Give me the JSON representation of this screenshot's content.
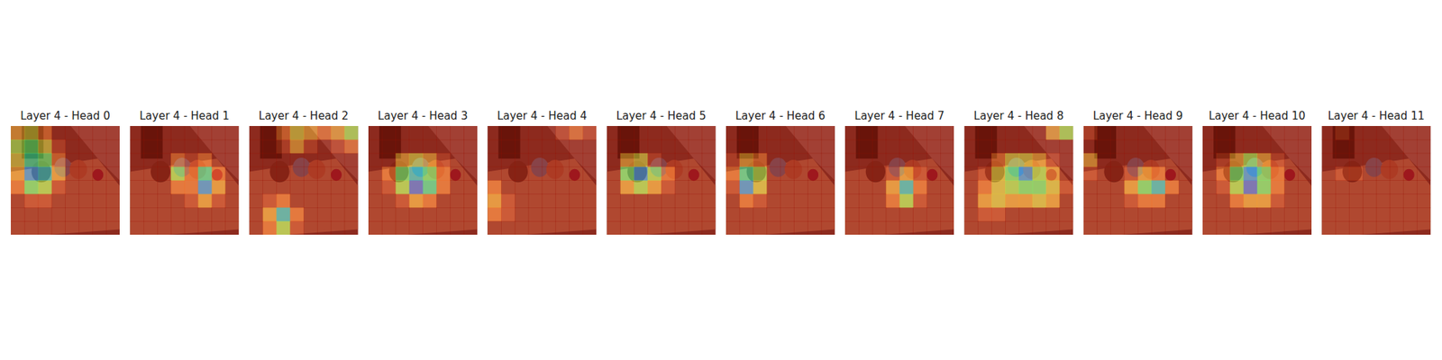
{
  "chart_data": [
    {
      "type": "heatmap",
      "title": "Layer 4 - Head 0",
      "zlim": [
        0,
        1
      ],
      "tick_labels": false,
      "cells": [
        [
          0.3,
          0.4,
          0.2,
          0,
          0,
          0,
          0,
          0
        ],
        [
          0.5,
          0.6,
          0.4,
          0.1,
          0,
          0,
          0,
          0
        ],
        [
          0.4,
          0.7,
          0.6,
          0.2,
          0,
          0,
          0,
          0
        ],
        [
          0.3,
          0.9,
          0.8,
          0.3,
          0,
          0,
          0,
          0
        ],
        [
          0.2,
          0.6,
          0.5,
          0.1,
          0,
          0,
          0,
          0
        ],
        [
          0,
          0.1,
          0.1,
          0,
          0,
          0,
          0,
          0
        ],
        [
          0,
          0,
          0,
          0,
          0,
          0,
          0,
          0
        ],
        [
          0,
          0,
          0,
          0,
          0,
          0,
          0,
          0
        ]
      ]
    },
    {
      "type": "heatmap",
      "title": "Layer 4 - Head 1",
      "zlim": [
        0,
        1
      ],
      "tick_labels": false,
      "cells": [
        [
          0,
          0,
          0,
          0,
          0,
          0,
          0,
          0
        ],
        [
          0,
          0,
          0,
          0,
          0,
          0,
          0,
          0
        ],
        [
          0,
          0,
          0,
          0.2,
          0.1,
          0.2,
          0,
          0
        ],
        [
          0,
          0,
          0,
          0.5,
          0.2,
          0.7,
          0.2,
          0
        ],
        [
          0,
          0,
          0,
          0.2,
          0.2,
          0.9,
          0.3,
          0
        ],
        [
          0,
          0,
          0,
          0,
          0.1,
          0.3,
          0.1,
          0
        ],
        [
          0,
          0,
          0,
          0,
          0,
          0,
          0,
          0
        ],
        [
          0,
          0,
          0,
          0,
          0,
          0,
          0,
          0
        ]
      ]
    },
    {
      "type": "heatmap",
      "title": "Layer 4 - Head 2",
      "zlim": [
        0,
        1
      ],
      "tick_labels": false,
      "cells": [
        [
          0,
          0,
          0.2,
          0.4,
          0.3,
          0.2,
          0.3,
          0.5
        ],
        [
          0,
          0,
          0.1,
          0.3,
          0.1,
          0,
          0.1,
          0.2
        ],
        [
          0,
          0,
          0,
          0,
          0,
          0,
          0,
          0
        ],
        [
          0,
          0,
          0,
          0,
          0,
          0,
          0,
          0
        ],
        [
          0,
          0,
          0,
          0,
          0,
          0,
          0,
          0
        ],
        [
          0,
          0.1,
          0.2,
          0,
          0,
          0,
          0,
          0
        ],
        [
          0,
          0.3,
          0.8,
          0.2,
          0,
          0,
          0,
          0
        ],
        [
          0,
          0.2,
          0.5,
          0.1,
          0,
          0,
          0,
          0
        ]
      ]
    },
    {
      "type": "heatmap",
      "title": "Layer 4 - Head 3",
      "zlim": [
        0,
        1
      ],
      "tick_labels": false,
      "cells": [
        [
          0,
          0,
          0,
          0,
          0,
          0,
          0,
          0
        ],
        [
          0,
          0,
          0,
          0,
          0,
          0,
          0,
          0
        ],
        [
          0,
          0,
          0.3,
          0.4,
          0.3,
          0.1,
          0,
          0
        ],
        [
          0,
          0.2,
          0.6,
          0.8,
          0.6,
          0.2,
          0,
          0
        ],
        [
          0,
          0.1,
          0.5,
          1,
          0.7,
          0.2,
          0,
          0
        ],
        [
          0,
          0,
          0.1,
          0.3,
          0.2,
          0,
          0,
          0
        ],
        [
          0,
          0,
          0,
          0,
          0,
          0,
          0,
          0
        ],
        [
          0,
          0,
          0,
          0,
          0,
          0,
          0,
          0
        ]
      ]
    },
    {
      "type": "heatmap",
      "title": "Layer 4 - Head 4",
      "zlim": [
        0,
        1
      ],
      "tick_labels": false,
      "cells": [
        [
          0,
          0,
          0,
          0,
          0,
          0.1,
          0.2,
          0.1
        ],
        [
          0,
          0,
          0,
          0,
          0,
          0,
          0,
          0
        ],
        [
          0,
          0,
          0,
          0,
          0,
          0,
          0,
          0
        ],
        [
          0,
          0,
          0,
          0,
          0,
          0,
          0,
          0
        ],
        [
          0.2,
          0,
          0,
          0,
          0,
          0,
          0,
          0
        ],
        [
          0.3,
          0.1,
          0,
          0,
          0,
          0,
          0,
          0
        ],
        [
          0.2,
          0.1,
          0,
          0,
          0,
          0,
          0,
          0
        ],
        [
          0,
          0,
          0,
          0,
          0,
          0,
          0,
          0
        ]
      ]
    },
    {
      "type": "heatmap",
      "title": "Layer 4 - Head 5",
      "zlim": [
        0,
        1
      ],
      "tick_labels": false,
      "cells": [
        [
          0,
          0,
          0,
          0,
          0,
          0,
          0,
          0
        ],
        [
          0,
          0,
          0,
          0,
          0,
          0,
          0,
          0
        ],
        [
          0,
          0.3,
          0.4,
          0.1,
          0,
          0,
          0,
          0
        ],
        [
          0,
          0.6,
          0.9,
          0.5,
          0.2,
          0,
          0,
          0
        ],
        [
          0,
          0.3,
          0.5,
          0.3,
          0.1,
          0,
          0,
          0
        ],
        [
          0,
          0,
          0,
          0,
          0,
          0,
          0,
          0
        ],
        [
          0,
          0,
          0,
          0,
          0,
          0,
          0,
          0
        ],
        [
          0,
          0,
          0,
          0,
          0,
          0,
          0,
          0
        ]
      ]
    },
    {
      "type": "heatmap",
      "title": "Layer 4 - Head 6",
      "zlim": [
        0,
        1
      ],
      "tick_labels": false,
      "cells": [
        [
          0,
          0,
          0,
          0,
          0,
          0,
          0,
          0
        ],
        [
          0,
          0,
          0,
          0,
          0,
          0,
          0,
          0
        ],
        [
          0.1,
          0.3,
          0.2,
          0,
          0,
          0,
          0,
          0
        ],
        [
          0.2,
          0.7,
          0.5,
          0,
          0,
          0,
          0,
          0
        ],
        [
          0.1,
          0.9,
          0.4,
          0,
          0,
          0,
          0,
          0
        ],
        [
          0,
          0.2,
          0.1,
          0,
          0,
          0,
          0,
          0
        ],
        [
          0,
          0,
          0,
          0,
          0,
          0,
          0,
          0
        ],
        [
          0,
          0,
          0,
          0,
          0,
          0,
          0,
          0
        ]
      ]
    },
    {
      "type": "heatmap",
      "title": "Layer 4 - Head 7",
      "zlim": [
        0,
        1
      ],
      "tick_labels": false,
      "cells": [
        [
          0,
          0,
          0,
          0,
          0,
          0,
          0,
          0
        ],
        [
          0,
          0,
          0,
          0,
          0,
          0,
          0,
          0
        ],
        [
          0,
          0,
          0,
          0,
          0,
          0,
          0,
          0
        ],
        [
          0,
          0,
          0,
          0.1,
          0.3,
          0.1,
          0,
          0
        ],
        [
          0,
          0,
          0,
          0.3,
          0.8,
          0.2,
          0,
          0
        ],
        [
          0,
          0,
          0,
          0.2,
          0.5,
          0.1,
          0,
          0
        ],
        [
          0,
          0,
          0,
          0,
          0,
          0,
          0,
          0
        ],
        [
          0,
          0,
          0,
          0,
          0,
          0,
          0,
          0
        ]
      ]
    },
    {
      "type": "heatmap",
      "title": "Layer 4 - Head 8",
      "zlim": [
        0,
        1
      ],
      "tick_labels": false,
      "cells": [
        [
          0,
          0,
          0,
          0,
          0,
          0,
          0.3,
          0.5
        ],
        [
          0,
          0,
          0,
          0,
          0,
          0,
          0,
          0
        ],
        [
          0,
          0,
          0.2,
          0.4,
          0.4,
          0.3,
          0.1,
          0
        ],
        [
          0,
          0.1,
          0.4,
          0.6,
          0.9,
          0.5,
          0.3,
          0
        ],
        [
          0,
          0.2,
          0.4,
          0.5,
          0.6,
          0.6,
          0.4,
          0.1
        ],
        [
          0,
          0.3,
          0.4,
          0.3,
          0.3,
          0.4,
          0.3,
          0
        ],
        [
          0,
          0.1,
          0.1,
          0,
          0,
          0,
          0,
          0
        ],
        [
          0,
          0,
          0,
          0,
          0,
          0,
          0,
          0
        ]
      ]
    },
    {
      "type": "heatmap",
      "title": "Layer 4 - Head 9",
      "zlim": [
        0,
        1
      ],
      "tick_labels": false,
      "cells": [
        [
          0.1,
          0,
          0,
          0,
          0,
          0,
          0,
          0
        ],
        [
          0,
          0,
          0,
          0,
          0,
          0,
          0,
          0
        ],
        [
          0.3,
          0,
          0,
          0,
          0,
          0,
          0,
          0
        ],
        [
          0.1,
          0,
          0,
          0.1,
          0.3,
          0.2,
          0,
          0
        ],
        [
          0,
          0,
          0,
          0.3,
          0.6,
          0.8,
          0.2,
          0
        ],
        [
          0,
          0,
          0,
          0.1,
          0.2,
          0.2,
          0,
          0
        ],
        [
          0,
          0,
          0,
          0,
          0,
          0,
          0,
          0
        ],
        [
          0,
          0,
          0,
          0,
          0,
          0,
          0,
          0
        ]
      ]
    },
    {
      "type": "heatmap",
      "title": "Layer 4 - Head 10",
      "zlim": [
        0,
        1
      ],
      "tick_labels": false,
      "cells": [
        [
          0,
          0,
          0,
          0,
          0,
          0,
          0,
          0
        ],
        [
          0,
          0,
          0,
          0,
          0,
          0,
          0,
          0
        ],
        [
          0,
          0.1,
          0.3,
          0.5,
          0.3,
          0.1,
          0,
          0
        ],
        [
          0,
          0.2,
          0.6,
          0.9,
          0.6,
          0.2,
          0,
          0
        ],
        [
          0,
          0.1,
          0.5,
          1,
          0.6,
          0.2,
          0,
          0
        ],
        [
          0,
          0,
          0.2,
          0.3,
          0.3,
          0.1,
          0,
          0
        ],
        [
          0,
          0,
          0,
          0,
          0,
          0,
          0,
          0
        ],
        [
          0,
          0,
          0,
          0,
          0,
          0,
          0,
          0
        ]
      ]
    },
    {
      "type": "heatmap",
      "title": "Layer 4 - Head 11",
      "zlim": [
        0,
        1
      ],
      "tick_labels": false,
      "cells": [
        [
          0,
          0.1,
          0,
          0,
          0,
          0,
          0,
          0
        ],
        [
          0,
          0,
          0,
          0,
          0,
          0,
          0,
          0
        ],
        [
          0,
          0,
          0,
          0,
          0,
          0,
          0,
          0
        ],
        [
          0,
          0.1,
          0.1,
          0,
          0,
          0,
          0,
          0
        ],
        [
          0,
          0,
          0,
          0,
          0,
          0,
          0,
          0
        ],
        [
          0,
          0,
          0,
          0,
          0,
          0,
          0,
          0
        ],
        [
          0,
          0,
          0,
          0,
          0,
          0,
          0,
          0
        ],
        [
          0,
          0,
          0,
          0,
          0,
          0,
          0,
          0
        ]
      ]
    }
  ]
}
